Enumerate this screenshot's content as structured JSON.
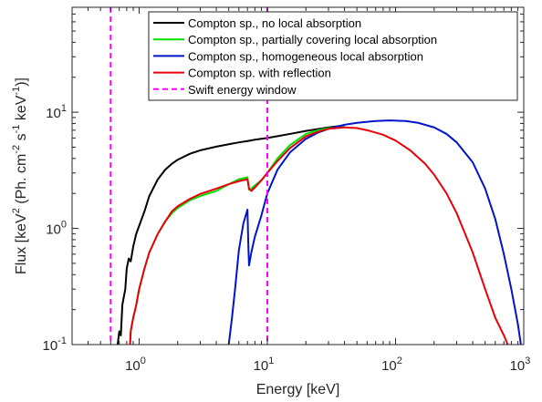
{
  "chart_data": {
    "type": "line",
    "xlabel": "Energy [keV]",
    "ylabel_parts": [
      "Flux [keV",
      "2",
      " (Ph. cm",
      "-2",
      " s",
      "-1",
      " keV",
      "-1",
      ")]"
    ],
    "x_scale": "log",
    "y_scale": "log",
    "xlim": [
      0.3,
      1000
    ],
    "ylim": [
      0.1,
      80
    ],
    "grid": false,
    "legend_position": "top-right",
    "x_ticks": [
      {
        "value": 1,
        "base": "10",
        "exp": "0"
      },
      {
        "value": 10,
        "base": "10",
        "exp": "1"
      },
      {
        "value": 100,
        "base": "10",
        "exp": "2"
      },
      {
        "value": 1000,
        "base": "10",
        "exp": "3"
      }
    ],
    "y_ticks": [
      {
        "value": 0.1,
        "base": "10",
        "exp": "-1"
      },
      {
        "value": 1,
        "base": "10",
        "exp": "0"
      },
      {
        "value": 10,
        "base": "10",
        "exp": "1"
      }
    ],
    "series": [
      {
        "name": "Compton sp., no local absorption",
        "color": "#000000",
        "style": "solid",
        "x": [
          0.68,
          0.7,
          0.72,
          0.74,
          0.78,
          0.8,
          0.83,
          0.86,
          0.9,
          0.95,
          1.0,
          1.1,
          1.2,
          1.4,
          1.6,
          1.8,
          2.0,
          2.5,
          3.0,
          4.0,
          5.0,
          6.0,
          7.0,
          8.0,
          10,
          15,
          20,
          30,
          40
        ],
        "y": [
          0.1,
          0.13,
          0.12,
          0.22,
          0.3,
          0.45,
          0.55,
          0.52,
          0.7,
          0.9,
          1.05,
          1.4,
          1.9,
          2.65,
          3.2,
          3.6,
          3.9,
          4.4,
          4.7,
          5.05,
          5.3,
          5.5,
          5.65,
          5.8,
          6.0,
          6.5,
          6.9,
          7.4,
          7.7
        ]
      },
      {
        "name": "Compton sp., partially covering local absorption",
        "color": "#00e000",
        "style": "solid",
        "x": [
          0.85,
          0.86,
          0.88,
          0.9,
          0.95,
          1.0,
          1.1,
          1.2,
          1.4,
          1.6,
          1.8,
          2.0,
          2.5,
          3.0,
          4.0,
          5.0,
          6.0,
          7.0,
          7.2,
          7.5,
          8.0,
          9.0,
          10,
          12,
          15,
          20,
          25,
          30,
          40
        ],
        "y": [
          0.1,
          0.13,
          0.15,
          0.17,
          0.22,
          0.3,
          0.45,
          0.62,
          0.9,
          1.15,
          1.35,
          1.5,
          1.75,
          1.9,
          2.1,
          2.4,
          2.65,
          2.75,
          2.15,
          2.2,
          2.35,
          2.6,
          3.0,
          4.0,
          5.2,
          6.5,
          7.0,
          7.3,
          7.6
        ]
      },
      {
        "name": "Compton sp., homogeneous local absorption",
        "color": "#0014c8",
        "style": "solid",
        "x": [
          5.0,
          5.3,
          5.6,
          6.0,
          6.5,
          7.0,
          7.1,
          7.2,
          7.5,
          8.0,
          9.0,
          10,
          12,
          15,
          20,
          25,
          30,
          40,
          50,
          70,
          90,
          120,
          150,
          200,
          250,
          300,
          400,
          500,
          600,
          700,
          800,
          900,
          950
        ],
        "y": [
          0.1,
          0.17,
          0.3,
          0.65,
          1.1,
          1.45,
          0.75,
          0.48,
          0.62,
          0.85,
          1.3,
          2.0,
          3.2,
          4.5,
          5.9,
          6.7,
          7.2,
          7.8,
          8.1,
          8.4,
          8.5,
          8.4,
          8.1,
          7.4,
          6.5,
          5.5,
          3.7,
          2.2,
          1.2,
          0.6,
          0.3,
          0.15,
          0.1
        ]
      },
      {
        "name": "Compton sp. with reflection",
        "color": "#e8000b",
        "style": "solid",
        "x": [
          0.85,
          0.86,
          0.88,
          0.9,
          0.95,
          1.0,
          1.1,
          1.2,
          1.4,
          1.6,
          1.8,
          2.0,
          2.5,
          3.0,
          4.0,
          5.0,
          6.0,
          7.0,
          7.2,
          7.5,
          8.0,
          9.0,
          10,
          12,
          15,
          20,
          25,
          30,
          40,
          50,
          60,
          80,
          100,
          130,
          170,
          200,
          250,
          300,
          400,
          500,
          600,
          700,
          750
        ],
        "y": [
          0.1,
          0.13,
          0.15,
          0.17,
          0.22,
          0.3,
          0.45,
          0.62,
          0.9,
          1.15,
          1.4,
          1.55,
          1.8,
          1.98,
          2.2,
          2.4,
          2.55,
          2.65,
          2.2,
          2.1,
          2.25,
          2.6,
          3.0,
          3.8,
          4.9,
          6.2,
          6.8,
          7.2,
          7.4,
          7.3,
          7.0,
          6.4,
          5.7,
          4.7,
          3.6,
          2.9,
          2.0,
          1.35,
          0.62,
          0.3,
          0.17,
          0.12,
          0.1
        ]
      },
      {
        "name": "Swift energy window",
        "color": "#ff00ff",
        "style": "dashed",
        "vlines": [
          0.6,
          10
        ]
      }
    ]
  }
}
